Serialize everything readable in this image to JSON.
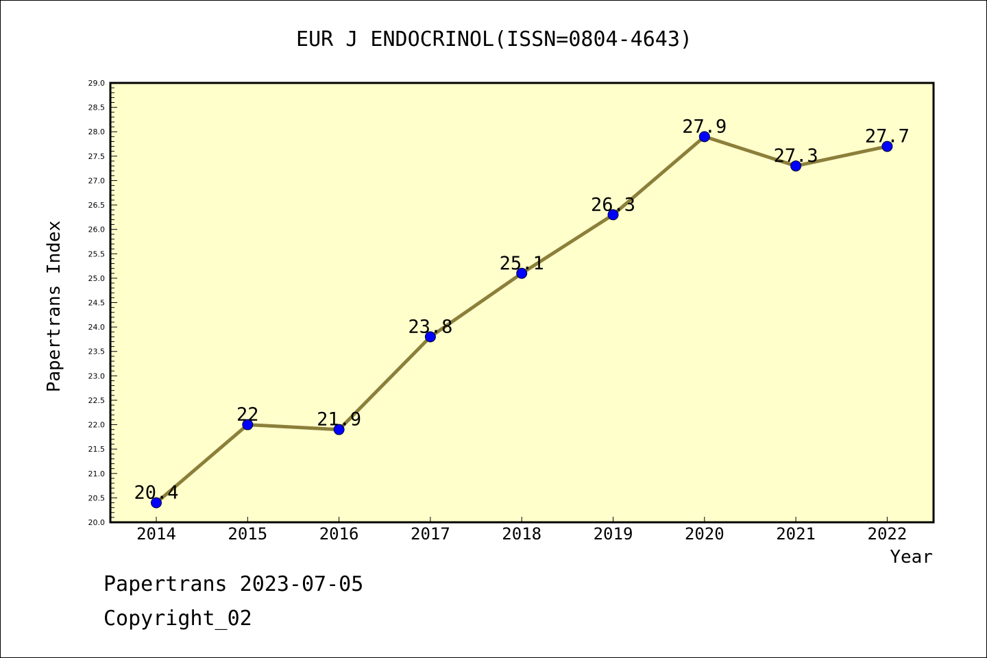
{
  "chart_data": {
    "type": "line",
    "title": "EUR J ENDOCRINOL(ISSN=0804-4643)",
    "xlabel": "Year",
    "ylabel": "Papertrans Index",
    "categories": [
      "2014",
      "2015",
      "2016",
      "2017",
      "2018",
      "2019",
      "2020",
      "2021",
      "2022"
    ],
    "series": [
      {
        "values": [
          20.4,
          22,
          21.9,
          23.8,
          25.1,
          26.3,
          27.9,
          27.3,
          27.7
        ],
        "labels": [
          "20.4",
          "22",
          "21.9",
          "23.8",
          "25.1",
          "26.3",
          "27.9",
          "27.3",
          "27.7"
        ]
      }
    ],
    "ylim": [
      20.0,
      29.0
    ],
    "yticks": [
      "20.0",
      "20.5",
      "21.0",
      "21.5",
      "22.0",
      "22.5",
      "23.0",
      "23.5",
      "24.0",
      "24.5",
      "25.0",
      "25.5",
      "26.0",
      "26.5",
      "27.0",
      "27.5",
      "28.0",
      "28.5",
      "29.0"
    ],
    "grid": false,
    "colors": {
      "plot_background": "#FFFFCC",
      "line": "#8B7F3A",
      "marker": "#0000FF"
    }
  },
  "footer": {
    "line1": "Papertrans 2023-07-05",
    "line2": "Copyright_02"
  }
}
